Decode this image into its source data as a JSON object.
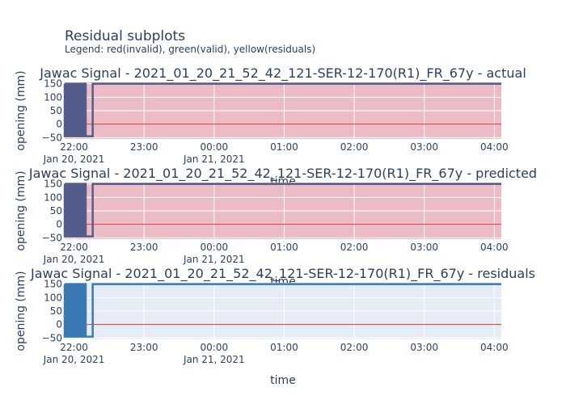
{
  "figure": {
    "title": "Residual subplots",
    "subtitle": "Legend: red(invalid), green(valid), yellow(residuals)",
    "xlabel": "time",
    "ylabel": "opening (mm)"
  },
  "chart_data": [
    {
      "type": "line",
      "title": "Jawac Signal - 2021_01_20_21_52_42_121-SER-12-170(R1)_FR_67y - actual",
      "xlabel": "time",
      "ylabel": "opening (mm)",
      "xlim": [
        "2021-01-20 21:52",
        "2021-01-21 04:06"
      ],
      "ylim": [
        -55,
        155
      ],
      "xticks": [
        "22:00",
        "23:00",
        "00:00",
        "01:00",
        "02:00",
        "03:00",
        "04:00"
      ],
      "xtick_dates": [
        "Jan 20, 2021",
        "Jan 21, 2021"
      ],
      "yticks": [
        -50,
        0,
        50,
        100,
        150
      ],
      "background_color": "#ebbcc5",
      "line_color": "#545c8c",
      "reference_line": {
        "y": 0,
        "color": "#e8322b"
      },
      "grid": true,
      "series": [
        {
          "x": [
            "21:52",
            "21:52",
            "21:53",
            "21:53",
            "21:54",
            "21:54",
            "21:55",
            "21:55",
            "21:56",
            "21:56",
            "21:57",
            "21:57",
            "21:58",
            "21:58",
            "21:59",
            "21:59",
            "22:00",
            "22:00",
            "22:01",
            "22:01",
            "22:02",
            "22:02",
            "22:03",
            "22:03",
            "22:04",
            "22:04",
            "22:05",
            "22:05",
            "22:06",
            "22:06",
            "22:07",
            "22:07",
            "22:08",
            "22:08",
            "22:09",
            "22:09",
            "22:10",
            "22:10",
            "22:16",
            "22:16",
            "04:06"
          ],
          "y": [
            150,
            -45,
            -45,
            150,
            150,
            -45,
            -45,
            150,
            150,
            -45,
            -45,
            150,
            150,
            -45,
            -45,
            150,
            150,
            -45,
            -45,
            150,
            150,
            -45,
            -45,
            150,
            150,
            -45,
            -45,
            150,
            150,
            -45,
            -45,
            150,
            150,
            -45,
            -45,
            150,
            150,
            -45,
            -45,
            150,
            150
          ]
        }
      ]
    },
    {
      "type": "line",
      "title": "Jawac Signal - 2021_01_20_21_52_42_121-SER-12-170(R1)_FR_67y - predicted",
      "xlabel": "time",
      "ylabel": "opening (mm)",
      "xlim": [
        "2021-01-20 21:52",
        "2021-01-21 04:06"
      ],
      "ylim": [
        -55,
        155
      ],
      "xticks": [
        "22:00",
        "23:00",
        "00:00",
        "01:00",
        "02:00",
        "03:00",
        "04:00"
      ],
      "xtick_dates": [
        "Jan 20, 2021",
        "Jan 21, 2021"
      ],
      "yticks": [
        -50,
        0,
        50,
        100,
        150
      ],
      "background_color": "#ebbcc5",
      "line_color": "#545c8c",
      "reference_line": {
        "y": 0,
        "color": "#e8322b"
      },
      "grid": true,
      "series": [
        {
          "x": [
            "21:52",
            "21:52",
            "21:53",
            "21:53",
            "21:54",
            "21:54",
            "21:55",
            "21:55",
            "21:56",
            "21:56",
            "21:57",
            "21:57",
            "21:58",
            "21:58",
            "21:59",
            "21:59",
            "22:00",
            "22:00",
            "22:01",
            "22:01",
            "22:02",
            "22:02",
            "22:03",
            "22:03",
            "22:04",
            "22:04",
            "22:05",
            "22:05",
            "22:06",
            "22:06",
            "22:07",
            "22:07",
            "22:08",
            "22:08",
            "22:09",
            "22:09",
            "22:10",
            "22:10",
            "22:16",
            "22:16",
            "04:06"
          ],
          "y": [
            150,
            -45,
            -45,
            150,
            150,
            -45,
            -45,
            150,
            150,
            -45,
            -45,
            150,
            150,
            -45,
            -45,
            150,
            150,
            -45,
            -45,
            150,
            150,
            -45,
            -45,
            150,
            150,
            -45,
            -45,
            150,
            150,
            -45,
            -45,
            150,
            150,
            -45,
            -45,
            150,
            150,
            -45,
            -45,
            150,
            150
          ]
        }
      ]
    },
    {
      "type": "line",
      "title": "Jawac Signal - 2021_01_20_21_52_42_121-SER-12-170(R1)_FR_67y - residuals",
      "xlabel": "time",
      "ylabel": "opening (mm)",
      "xlim": [
        "2021-01-20 21:52",
        "2021-01-21 04:06"
      ],
      "ylim": [
        -55,
        155
      ],
      "xticks": [
        "22:00",
        "23:00",
        "00:00",
        "01:00",
        "02:00",
        "03:00",
        "04:00"
      ],
      "xtick_dates": [
        "Jan 20, 2021",
        "Jan 21, 2021"
      ],
      "yticks": [
        -50,
        0,
        50,
        100,
        150
      ],
      "background_color": "#e5ecf6",
      "line_color": "#3a79b4",
      "reference_line": {
        "y": 0,
        "color": "#e8322b"
      },
      "grid": true,
      "series": [
        {
          "x": [
            "21:52",
            "21:52",
            "21:53",
            "21:53",
            "21:54",
            "21:54",
            "21:55",
            "21:55",
            "21:56",
            "21:56",
            "21:57",
            "21:57",
            "21:58",
            "21:58",
            "21:59",
            "21:59",
            "22:00",
            "22:00",
            "22:01",
            "22:01",
            "22:02",
            "22:02",
            "22:03",
            "22:03",
            "22:04",
            "22:04",
            "22:05",
            "22:05",
            "22:06",
            "22:06",
            "22:07",
            "22:07",
            "22:08",
            "22:08",
            "22:09",
            "22:09",
            "22:10",
            "22:10",
            "22:16",
            "22:16",
            "04:06"
          ],
          "y": [
            150,
            -45,
            -45,
            150,
            150,
            -45,
            -45,
            150,
            150,
            -45,
            -45,
            150,
            150,
            -45,
            -45,
            150,
            150,
            -45,
            -45,
            150,
            150,
            -45,
            -45,
            150,
            150,
            -45,
            -45,
            150,
            150,
            -45,
            -45,
            150,
            150,
            -45,
            -45,
            150,
            150,
            -45,
            -45,
            150,
            150
          ]
        }
      ]
    }
  ]
}
